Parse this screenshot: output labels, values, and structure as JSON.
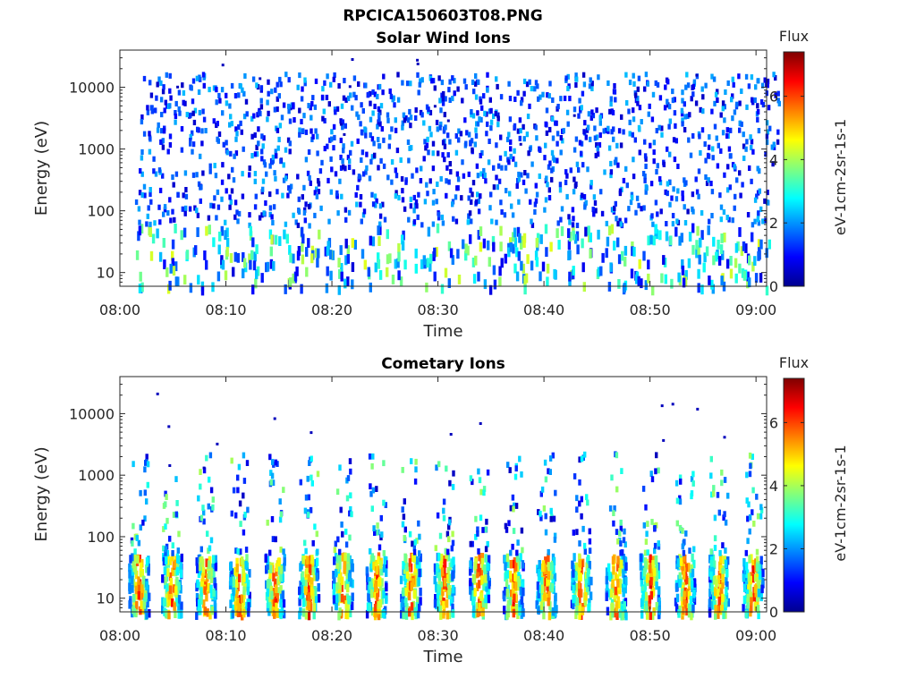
{
  "figure": {
    "title": "RPCICA150603T08.PNG"
  },
  "colors": {
    "jet": [
      "#00008f",
      "#0000ff",
      "#007fff",
      "#00ffff",
      "#7fff7f",
      "#ffff00",
      "#ff7f00",
      "#ff0000",
      "#7f0000"
    ]
  },
  "chart_data": [
    {
      "type": "heatmap",
      "title": "Solar Wind Ions",
      "xlabel": "Time",
      "ylabel": "Energy (eV)",
      "x_ticks": [
        "08:00",
        "08:10",
        "08:20",
        "08:30",
        "08:40",
        "08:50",
        "09:00"
      ],
      "y_ticks": [
        "10",
        "100",
        "1000",
        "10000"
      ],
      "y_scale": "log",
      "ylim": [
        6,
        40000
      ],
      "xlim": [
        "08:00",
        "09:01"
      ],
      "colorbar": {
        "label": "eV-1cm-2sr-1s-1",
        "title": "Flux",
        "range": [
          0,
          7.4
        ],
        "ticks": [
          "0",
          "2",
          "4",
          "6"
        ]
      },
      "burst_times_min": [
        2.6,
        5.8,
        9.3,
        12.4,
        15.5,
        18.6,
        21.8,
        24.9,
        28.1,
        31.2,
        34.4,
        37.6,
        40.8,
        43.8,
        47.0,
        50.2,
        53.4,
        56.6,
        59.6
      ],
      "burst_peak_flux": 3.5,
      "burst_energy_range_eV": [
        6,
        20000
      ]
    },
    {
      "type": "heatmap",
      "title": "Cometary Ions",
      "xlabel": "Time",
      "ylabel": "Energy (eV)",
      "x_ticks": [
        "08:00",
        "08:10",
        "08:20",
        "08:30",
        "08:40",
        "08:50",
        "09:00"
      ],
      "y_ticks": [
        "10",
        "100",
        "1000",
        "10000"
      ],
      "y_scale": "log",
      "ylim": [
        6,
        40000
      ],
      "xlim": [
        "08:00",
        "09:01"
      ],
      "colorbar": {
        "label": "eV-1cm-2sr-1s-1",
        "title": "Flux",
        "range": [
          0,
          7.4
        ],
        "ticks": [
          "0",
          "2",
          "4",
          "6"
        ]
      },
      "burst_times_min": [
        1.7,
        4.8,
        8.0,
        11.2,
        14.5,
        17.7,
        20.9,
        24.1,
        27.3,
        30.5,
        33.8,
        37.0,
        40.1,
        43.4,
        46.7,
        49.9,
        53.2,
        56.4,
        59.6
      ],
      "burst_peak_flux": 6.8,
      "burst_energy_range_eV": [
        6,
        50
      ]
    }
  ]
}
